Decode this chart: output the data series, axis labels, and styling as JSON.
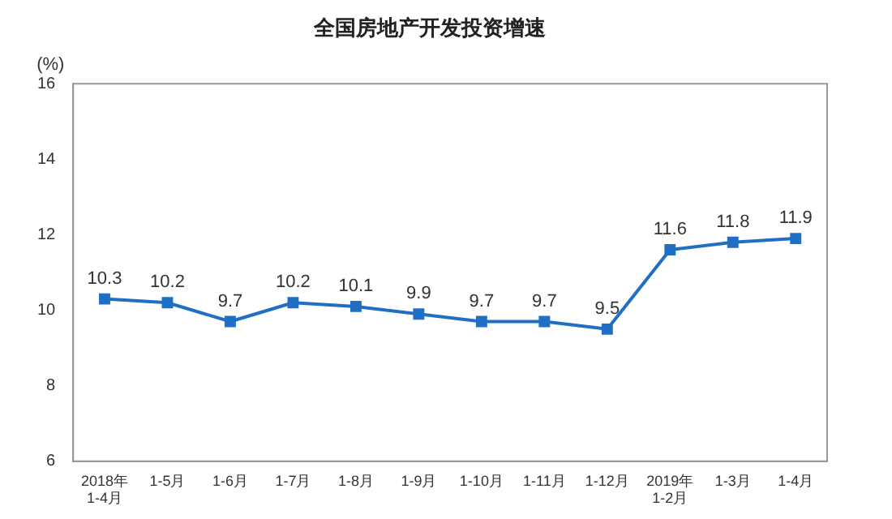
{
  "chart_data": {
    "type": "line",
    "title": "全国房地产开发投资增速",
    "ylabel": "(%)",
    "categories": [
      "2018年\n1-4月",
      "1-5月",
      "1-6月",
      "1-7月",
      "1-8月",
      "1-9月",
      "1-10月",
      "1-11月",
      "1-12月",
      "2019年\n1-2月",
      "1-3月",
      "1-4月"
    ],
    "series": [
      {
        "color": "#1f6fc5",
        "values": [
          10.3,
          10.2,
          9.7,
          10.2,
          10.1,
          9.9,
          9.7,
          9.7,
          9.5,
          11.6,
          11.8,
          11.9
        ]
      }
    ],
    "ylim": [
      6,
      16
    ],
    "yticks": [
      6,
      8,
      10,
      12,
      14,
      16
    ],
    "grid": false,
    "legend": false,
    "marker": "square",
    "line_style": "solid",
    "data_labels": true
  }
}
